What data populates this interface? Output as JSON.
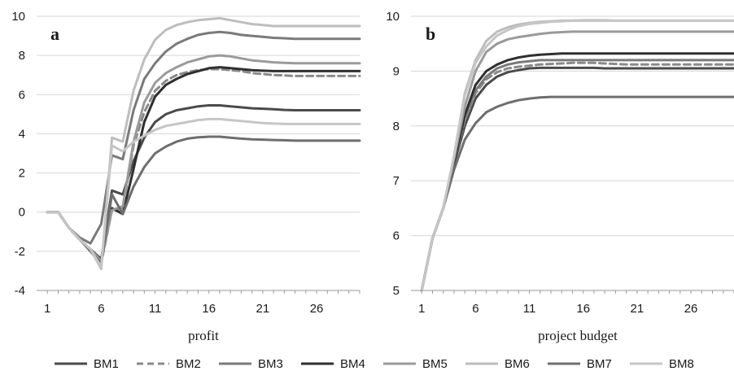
{
  "chart_data": [
    {
      "type": "line",
      "panel_label": "a",
      "xlabel": "profit",
      "ylabel": "",
      "x_ticks": [
        1,
        6,
        11,
        16,
        21,
        26
      ],
      "y_ticks": [
        -4,
        -2,
        0,
        2,
        4,
        6,
        8,
        10
      ],
      "xlim": [
        0,
        30
      ],
      "ylim": [
        -4,
        10
      ],
      "grid": "horizontal",
      "x": [
        1,
        2,
        3,
        4,
        5,
        6,
        7,
        8,
        9,
        10,
        11,
        12,
        13,
        14,
        15,
        16,
        17,
        18,
        19,
        20,
        21,
        22,
        23,
        24,
        25,
        26,
        27,
        28,
        29,
        30
      ],
      "series": [
        {
          "name": "BM1",
          "color": "#4a4a4a",
          "dash": "solid",
          "values": [
            0,
            0,
            -0.8,
            -1.4,
            -1.9,
            -2.4,
            1.1,
            0.9,
            2.6,
            3.8,
            4.6,
            5.0,
            5.2,
            5.3,
            5.4,
            5.45,
            5.45,
            5.4,
            5.35,
            5.3,
            5.28,
            5.25,
            5.22,
            5.2,
            5.2,
            5.2,
            5.2,
            5.2,
            5.2,
            5.2
          ]
        },
        {
          "name": "BM2",
          "color": "#8a8a8a",
          "dash": "dashed",
          "values": [
            0,
            0,
            -0.8,
            -1.4,
            -1.9,
            -2.6,
            0.1,
            0.2,
            3.4,
            5.1,
            6.2,
            6.7,
            7.0,
            7.15,
            7.25,
            7.3,
            7.3,
            7.25,
            7.2,
            7.1,
            7.05,
            7.0,
            6.98,
            6.95,
            6.95,
            6.95,
            6.95,
            6.95,
            6.95,
            6.95
          ]
        },
        {
          "name": "BM3",
          "color": "#7a7a7a",
          "dash": "solid",
          "values": [
            0,
            0,
            -0.8,
            -1.3,
            -1.6,
            -0.6,
            2.9,
            2.7,
            5.2,
            6.8,
            7.6,
            8.2,
            8.6,
            8.85,
            9.05,
            9.15,
            9.2,
            9.15,
            9.05,
            9.0,
            8.95,
            8.9,
            8.88,
            8.85,
            8.85,
            8.85,
            8.85,
            8.85,
            8.85,
            8.85
          ]
        },
        {
          "name": "BM4",
          "color": "#2f2f2f",
          "dash": "solid",
          "values": [
            0,
            0,
            -0.8,
            -1.4,
            -1.9,
            -2.5,
            0.2,
            -0.1,
            2.2,
            4.6,
            5.9,
            6.5,
            6.8,
            7.05,
            7.2,
            7.35,
            7.4,
            7.35,
            7.3,
            7.25,
            7.22,
            7.2,
            7.2,
            7.2,
            7.2,
            7.2,
            7.2,
            7.2,
            7.2,
            7.2
          ]
        },
        {
          "name": "BM5",
          "color": "#9a9a9a",
          "dash": "solid",
          "values": [
            0,
            0,
            -0.8,
            -1.4,
            -1.9,
            -2.5,
            0.1,
            0.3,
            3.6,
            5.6,
            6.6,
            7.1,
            7.4,
            7.65,
            7.8,
            7.95,
            8.0,
            7.95,
            7.85,
            7.75,
            7.7,
            7.65,
            7.62,
            7.6,
            7.6,
            7.6,
            7.6,
            7.6,
            7.6,
            7.6
          ]
        },
        {
          "name": "BM6",
          "color": "#bdbdbd",
          "dash": "solid",
          "values": [
            0,
            0,
            -0.8,
            -1.4,
            -1.9,
            -2.9,
            3.8,
            3.6,
            6.2,
            7.8,
            8.8,
            9.3,
            9.55,
            9.7,
            9.8,
            9.85,
            9.9,
            9.8,
            9.7,
            9.6,
            9.55,
            9.5,
            9.5,
            9.5,
            9.5,
            9.5,
            9.5,
            9.5,
            9.5,
            9.5
          ]
        },
        {
          "name": "BM7",
          "color": "#6e6e6e",
          "dash": "solid",
          "values": [
            0,
            0,
            -0.8,
            -1.4,
            -2.0,
            -2.6,
            0.9,
            -0.1,
            1.3,
            2.3,
            3.0,
            3.35,
            3.6,
            3.75,
            3.82,
            3.85,
            3.85,
            3.8,
            3.75,
            3.72,
            3.7,
            3.68,
            3.67,
            3.65,
            3.65,
            3.65,
            3.65,
            3.65,
            3.65,
            3.65
          ]
        },
        {
          "name": "BM8",
          "color": "#c6c6c6",
          "dash": "solid",
          "values": [
            0,
            0,
            -0.8,
            -1.4,
            -1.9,
            -2.8,
            3.4,
            3.1,
            3.6,
            3.9,
            4.2,
            4.4,
            4.5,
            4.6,
            4.7,
            4.75,
            4.75,
            4.7,
            4.65,
            4.6,
            4.55,
            4.52,
            4.5,
            4.5,
            4.5,
            4.5,
            4.5,
            4.5,
            4.5,
            4.5
          ]
        }
      ]
    },
    {
      "type": "line",
      "panel_label": "b",
      "xlabel": "project budget",
      "ylabel": "",
      "x_ticks": [
        1,
        6,
        11,
        16,
        21,
        26
      ],
      "y_ticks": [
        5,
        6,
        7,
        8,
        9,
        10
      ],
      "xlim": [
        0,
        30
      ],
      "ylim": [
        5,
        10
      ],
      "grid": "horizontal",
      "x": [
        1,
        2,
        3,
        4,
        5,
        6,
        7,
        8,
        9,
        10,
        11,
        12,
        13,
        14,
        15,
        16,
        17,
        18,
        19,
        20,
        21,
        22,
        23,
        24,
        25,
        26,
        27,
        28,
        29,
        30
      ],
      "series": [
        {
          "name": "BM1",
          "color": "#4a4a4a",
          "dash": "solid",
          "values": [
            5.0,
            5.95,
            6.5,
            7.3,
            8.0,
            8.5,
            8.75,
            8.9,
            8.98,
            9.02,
            9.05,
            9.06,
            9.06,
            9.06,
            9.06,
            9.06,
            9.06,
            9.05,
            9.05,
            9.05,
            9.05,
            9.05,
            9.05,
            9.05,
            9.05,
            9.05,
            9.05,
            9.05,
            9.05,
            9.05
          ]
        },
        {
          "name": "BM2",
          "color": "#8a8a8a",
          "dash": "dashed",
          "values": [
            5.0,
            5.95,
            6.5,
            7.35,
            8.1,
            8.6,
            8.85,
            8.98,
            9.05,
            9.08,
            9.1,
            9.12,
            9.13,
            9.14,
            9.15,
            9.15,
            9.15,
            9.14,
            9.13,
            9.12,
            9.12,
            9.12,
            9.12,
            9.12,
            9.12,
            9.12,
            9.12,
            9.12,
            9.12,
            9.12
          ]
        },
        {
          "name": "BM3",
          "color": "#7a7a7a",
          "dash": "solid",
          "values": [
            5.0,
            5.95,
            6.5,
            7.35,
            8.15,
            8.65,
            8.9,
            9.05,
            9.12,
            9.16,
            9.18,
            9.2,
            9.2,
            9.2,
            9.2,
            9.2,
            9.2,
            9.2,
            9.2,
            9.2,
            9.2,
            9.2,
            9.2,
            9.2,
            9.2,
            9.2,
            9.2,
            9.2,
            9.2,
            9.2
          ]
        },
        {
          "name": "BM4",
          "color": "#2f2f2f",
          "dash": "solid",
          "values": [
            5.0,
            5.95,
            6.5,
            7.35,
            8.2,
            8.75,
            9.0,
            9.12,
            9.2,
            9.25,
            9.28,
            9.3,
            9.31,
            9.32,
            9.32,
            9.32,
            9.32,
            9.32,
            9.32,
            9.32,
            9.32,
            9.32,
            9.32,
            9.32,
            9.32,
            9.32,
            9.32,
            9.32,
            9.32,
            9.32
          ]
        },
        {
          "name": "BM5",
          "color": "#9a9a9a",
          "dash": "solid",
          "values": [
            5.0,
            5.95,
            6.5,
            7.4,
            8.35,
            9.0,
            9.35,
            9.5,
            9.58,
            9.62,
            9.65,
            9.68,
            9.7,
            9.71,
            9.72,
            9.72,
            9.72,
            9.72,
            9.72,
            9.72,
            9.72,
            9.72,
            9.72,
            9.72,
            9.72,
            9.72,
            9.72,
            9.72,
            9.72,
            9.72
          ]
        },
        {
          "name": "BM6",
          "color": "#bdbdbd",
          "dash": "solid",
          "values": [
            5.0,
            5.95,
            6.5,
            7.45,
            8.6,
            9.2,
            9.55,
            9.72,
            9.8,
            9.85,
            9.88,
            9.9,
            9.91,
            9.92,
            9.92,
            9.92,
            9.92,
            9.92,
            9.92,
            9.92,
            9.92,
            9.92,
            9.92,
            9.92,
            9.92,
            9.92,
            9.92,
            9.92,
            9.92,
            9.92
          ]
        },
        {
          "name": "BM7",
          "color": "#6e6e6e",
          "dash": "solid",
          "values": [
            5.0,
            5.95,
            6.5,
            7.2,
            7.75,
            8.05,
            8.25,
            8.35,
            8.42,
            8.47,
            8.5,
            8.52,
            8.53,
            8.53,
            8.53,
            8.53,
            8.53,
            8.53,
            8.53,
            8.53,
            8.53,
            8.53,
            8.53,
            8.53,
            8.53,
            8.53,
            8.53,
            8.53,
            8.53,
            8.53
          ]
        },
        {
          "name": "BM8",
          "color": "#c6c6c6",
          "dash": "solid",
          "values": [
            5.0,
            5.95,
            6.5,
            7.45,
            8.55,
            9.15,
            9.45,
            9.65,
            9.75,
            9.82,
            9.86,
            9.88,
            9.9,
            9.91,
            9.92,
            9.93,
            9.93,
            9.93,
            9.92,
            9.92,
            9.92,
            9.92,
            9.92,
            9.92,
            9.92,
            9.92,
            9.92,
            9.92,
            9.92,
            9.92
          ]
        }
      ]
    }
  ],
  "legend": [
    {
      "name": "BM1",
      "color": "#4a4a4a",
      "dash": "solid"
    },
    {
      "name": "BM2",
      "color": "#8a8a8a",
      "dash": "dashed"
    },
    {
      "name": "BM3",
      "color": "#7a7a7a",
      "dash": "solid"
    },
    {
      "name": "BM4",
      "color": "#2f2f2f",
      "dash": "solid"
    },
    {
      "name": "BM5",
      "color": "#9a9a9a",
      "dash": "solid"
    },
    {
      "name": "BM6",
      "color": "#bdbdbd",
      "dash": "solid"
    },
    {
      "name": "BM7",
      "color": "#6e6e6e",
      "dash": "solid"
    },
    {
      "name": "BM8",
      "color": "#c6c6c6",
      "dash": "solid"
    }
  ]
}
